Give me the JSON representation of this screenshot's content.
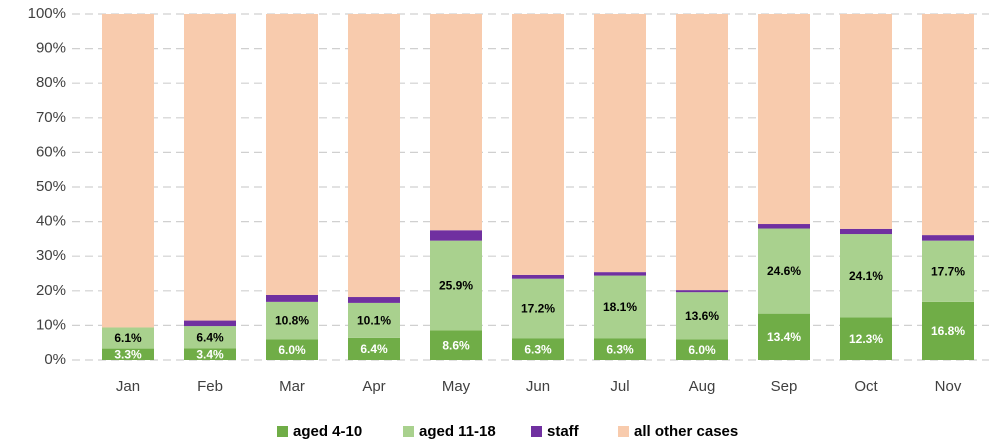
{
  "chart_data": {
    "type": "stacked_bar_percent",
    "categories": [
      "Jan",
      "Feb",
      "Mar",
      "Apr",
      "May",
      "Jun",
      "Jul",
      "Aug",
      "Sep",
      "Oct",
      "Nov"
    ],
    "series": [
      {
        "name": "aged 4-10",
        "color": "#70ad47",
        "label_color": "#ffffff",
        "values": [
          3.3,
          3.4,
          6.0,
          6.4,
          8.6,
          6.3,
          6.3,
          6.0,
          13.4,
          12.3,
          16.8
        ],
        "value_labels": [
          "3.3%",
          "3.4%",
          "6.0%",
          "6.4%",
          "8.6%",
          "6.3%",
          "6.3%",
          "6.0%",
          "13.4%",
          "12.3%",
          "16.8%"
        ]
      },
      {
        "name": "aged 11-18",
        "color": "#a9d18e",
        "label_color": "#000000",
        "values": [
          6.1,
          6.4,
          10.8,
          10.1,
          25.9,
          17.2,
          18.1,
          13.6,
          24.6,
          24.1,
          17.7
        ],
        "value_labels": [
          "6.1%",
          "6.4%",
          "10.8%",
          "10.1%",
          "25.9%",
          "17.2%",
          "18.1%",
          "13.6%",
          "24.6%",
          "24.1%",
          "17.7%"
        ]
      },
      {
        "name": "staff",
        "color": "#7030a0",
        "values": [
          0,
          1.6,
          2.0,
          1.7,
          3.0,
          1.1,
          1.0,
          0.6,
          1.3,
          1.5,
          1.6
        ]
      },
      {
        "name": "all other cases",
        "color": "#f8cbad",
        "values": [
          90.6,
          88.6,
          81.2,
          81.8,
          62.5,
          75.4,
          74.6,
          79.8,
          60.7,
          62.1,
          63.9
        ]
      }
    ],
    "ylim": [
      0,
      100
    ],
    "yticks": [
      {
        "value": 0,
        "label": "0%"
      },
      {
        "value": 10,
        "label": "10%"
      },
      {
        "value": 20,
        "label": "20%"
      },
      {
        "value": 30,
        "label": "30%"
      },
      {
        "value": 40,
        "label": "40%"
      },
      {
        "value": 50,
        "label": "50%"
      },
      {
        "value": 60,
        "label": "60%"
      },
      {
        "value": 70,
        "label": "70%"
      },
      {
        "value": 80,
        "label": "80%"
      },
      {
        "value": 90,
        "label": "90%"
      },
      {
        "value": 100,
        "label": "100%"
      }
    ],
    "grid": true,
    "legend": "bottom"
  }
}
